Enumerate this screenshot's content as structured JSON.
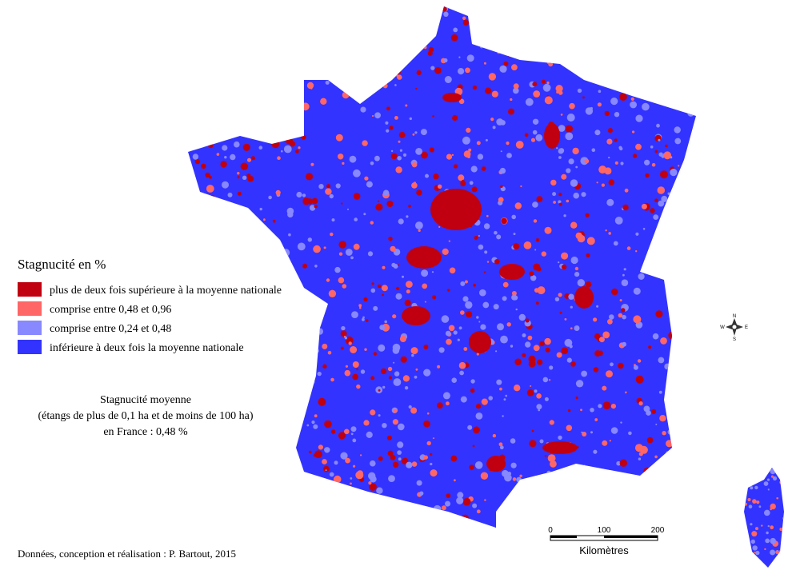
{
  "legend": {
    "title": "Stagnucité en %",
    "items": [
      {
        "label": "plus de deux fois supérieure à la moyenne nationale",
        "color": "#c00010"
      },
      {
        "label": "comprise entre 0,48 et 0,96",
        "color": "#ff6666"
      },
      {
        "label": "comprise entre 0,24 et 0,48",
        "color": "#8888ff"
      },
      {
        "label": "inférieure à deux fois la moyenne nationale",
        "color": "#3333ff"
      }
    ]
  },
  "note": {
    "lines": [
      "Stagnucité moyenne",
      "(étangs de plus de 0,1 ha et de moins de 100 ha)",
      "en France : 0,48 %"
    ]
  },
  "credit": "Données, conception et réalisation : P. Bartout, 2015",
  "scale": {
    "ticks": [
      0,
      100,
      200
    ],
    "unit": "Kilomètres"
  },
  "compass": {
    "n": "N",
    "s": "S",
    "e": "E",
    "w": "W"
  }
}
